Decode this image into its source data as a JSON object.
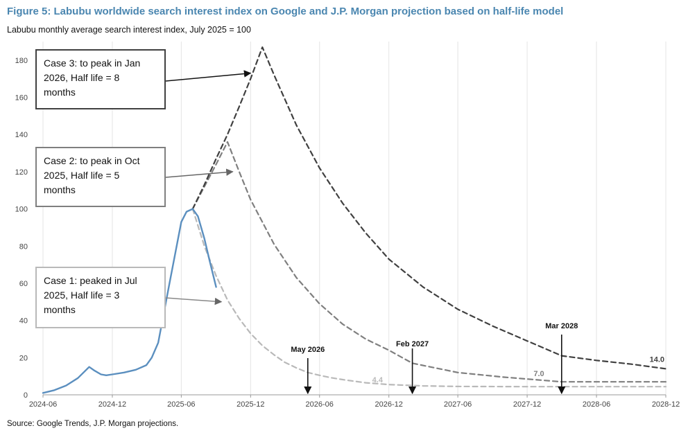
{
  "header": {
    "title": "Figure 5: Labubu worldwide search interest index on Google and J.P. Morgan projection based on half-life model",
    "subtitle": "Labubu monthly average search interest index, July 2025 = 100"
  },
  "footer": {
    "source": "Source: Google Trends, J.P. Morgan projections."
  },
  "colors": {
    "title": "#4a86b0",
    "actual": "#5b8fbf",
    "case1": "#b9b9b9",
    "case2": "#7f7f7f",
    "case3": "#404040"
  },
  "chart_data": {
    "type": "line",
    "title": "Figure 5: Labubu worldwide search interest index on Google and J.P. Morgan projection based on half-life model",
    "subtitle": "Labubu monthly average search interest index, July 2025 = 100",
    "x_axis": {
      "type": "date",
      "range": [
        "2024-06",
        "2028-12"
      ],
      "tick_labels": [
        "2024-06",
        "2024-12",
        "2025-06",
        "2025-12",
        "2026-06",
        "2026-12",
        "2027-06",
        "2027-12",
        "2028-06",
        "2028-12"
      ]
    },
    "y_axis": {
      "range": [
        0,
        190
      ],
      "ticks": [
        0,
        20,
        40,
        60,
        80,
        100,
        120,
        140,
        160,
        180
      ]
    },
    "grid": "vertical",
    "series": [
      {
        "style": "solid",
        "x": [
          "2024-06-01",
          "2024-07-01",
          "2024-08-01",
          "2024-09-01",
          "2024-10-01",
          "2024-10-15",
          "2024-11-01",
          "2024-11-15",
          "2024-12-01",
          "2025-01-01",
          "2025-02-01",
          "2025-03-01",
          "2025-03-15",
          "2025-04-01",
          "2025-05-01",
          "2025-06-01",
          "2025-06-15",
          "2025-07-01",
          "2025-07-15",
          "2025-08-01",
          "2025-08-15",
          "2025-09-01"
        ],
        "y": [
          1,
          2.5,
          5,
          9,
          15,
          13,
          11,
          10.5,
          11,
          12,
          13.5,
          16,
          20,
          28,
          60,
          93,
          98.5,
          100,
          96,
          84,
          72,
          58
        ]
      },
      {
        "style": "dashed",
        "x": [
          "2025-07-01",
          "2025-08-01",
          "2025-09-01",
          "2025-10-01",
          "2025-11-01",
          "2025-12-01",
          "2026-01-01",
          "2026-02-01",
          "2026-03-01",
          "2026-04-01",
          "2026-05-01",
          "2026-06-01",
          "2026-07-01",
          "2026-08-01",
          "2026-09-01",
          "2026-10-01",
          "2026-12-01",
          "2027-03-01",
          "2027-06-01",
          "2027-12-01",
          "2028-06-01",
          "2028-12-01"
        ],
        "y": [
          100,
          80,
          64,
          51,
          41,
          33,
          26.5,
          21.5,
          17.5,
          14.5,
          12,
          10.5,
          9.2,
          8.2,
          7.3,
          6.5,
          5.5,
          4.8,
          4.5,
          4.4,
          4.4,
          4.4
        ]
      },
      {
        "style": "dashed",
        "x": [
          "2025-07-01",
          "2025-08-01",
          "2025-09-01",
          "2025-10-01",
          "2025-11-01",
          "2025-12-01",
          "2026-02-01",
          "2026-04-01",
          "2026-06-01",
          "2026-08-01",
          "2026-10-01",
          "2026-12-01",
          "2027-02-01",
          "2027-06-01",
          "2027-10-01",
          "2028-03-01",
          "2028-06-01",
          "2028-12-01"
        ],
        "y": [
          100,
          112,
          124,
          136,
          120,
          105,
          81,
          63,
          49,
          38,
          30,
          24,
          17,
          12,
          9.5,
          7.0,
          7.0,
          7.0
        ]
      },
      {
        "style": "dashed",
        "x": [
          "2025-07-01",
          "2025-08-01",
          "2025-09-01",
          "2025-10-01",
          "2025-11-01",
          "2025-12-01",
          "2026-01-01",
          "2026-02-01",
          "2026-04-01",
          "2026-06-01",
          "2026-08-01",
          "2026-10-01",
          "2026-12-01",
          "2027-03-01",
          "2027-06-01",
          "2027-09-01",
          "2027-12-01",
          "2028-03-01",
          "2028-06-01",
          "2028-09-01",
          "2028-12-01"
        ],
        "y": [
          100,
          113,
          127,
          140,
          155,
          170,
          187,
          172,
          145,
          122,
          103,
          87,
          73,
          58,
          46,
          37,
          29,
          21,
          18.5,
          16.5,
          14.0
        ]
      }
    ],
    "end_labels": [
      {
        "text": "14.0",
        "x": "2028-12-01",
        "y": 14.0
      },
      {
        "text": "7.0",
        "x": "2028-01-01",
        "y": 7.0
      },
      {
        "text": "4.4",
        "x": "2026-11-01",
        "y": 4.4
      }
    ],
    "markers": [
      {
        "label": "May 2026",
        "date": "2026-05-01"
      },
      {
        "label": "Feb 2027",
        "date": "2027-02-01"
      },
      {
        "label": "Mar 2028",
        "date": "2028-03-01"
      }
    ],
    "callouts": [
      {
        "text": "Case 3: to peak in Jan 2026, Half life = 8 months",
        "lines": [
          "Case 3: to peak in Jan",
          "2026, Half life = 8",
          "months"
        ],
        "target_date": "2025-12-01",
        "target_y": 173
      },
      {
        "text": "Case 2: to peak in Oct 2025, Half life = 5 months",
        "lines": [
          "Case 2: to peak in Oct",
          "2025, Half life = 5",
          "months"
        ],
        "target_date": "2025-10-15",
        "target_y": 120
      },
      {
        "text": "Case 1: peaked in Jul 2025, Half life = 3 months",
        "lines": [
          "Case 1: peaked in Jul",
          "2025, Half life = 3",
          "months"
        ],
        "target_date": "2025-09-15",
        "target_y": 53
      }
    ]
  }
}
